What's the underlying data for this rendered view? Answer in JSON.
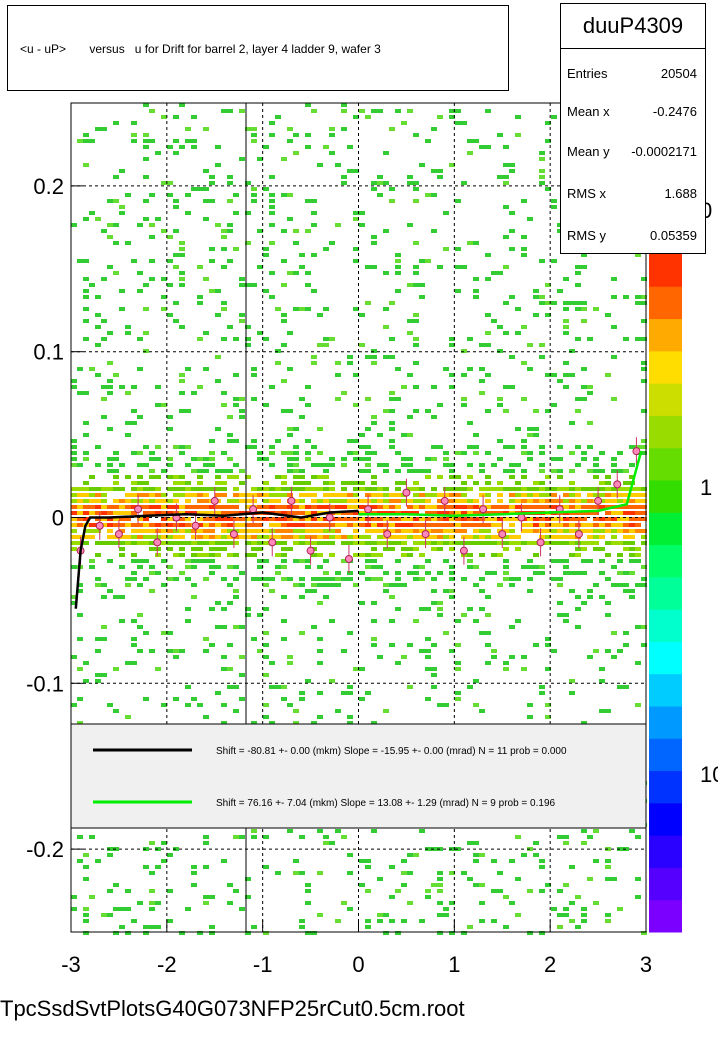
{
  "title": "<u - uP>       versus   u for Drift for barrel 2, layer 4 ladder 9, wafer 3",
  "stats": {
    "name": "duuP4309",
    "rows": [
      {
        "label": "Entries",
        "value": "20504"
      },
      {
        "label": "Mean x",
        "value": "-0.2476"
      },
      {
        "label": "Mean y",
        "value": "-0.0002171"
      },
      {
        "label": "RMS x",
        "value": "1.688"
      },
      {
        "label": "RMS y",
        "value": "0.05359"
      }
    ]
  },
  "footer": "TpcSsdSvtPlotsG40G073NFP25rCut0.5cm.root",
  "colorbar_labels": [
    "0",
    "1",
    "10"
  ],
  "legend": [
    {
      "text": "Shift =    -80.81 +- 0.00 (mkm) Slope =    -15.95 +- 0.00 (mrad)  N = 11 prob = 0.000",
      "color": "#000000"
    },
    {
      "text": "Shift =    76.16 +- 7.04 (mkm) Slope =    13.08 +- 1.29 (mrad)  N = 9 prob = 0.196",
      "color": "#00ee00"
    }
  ],
  "chart_data": {
    "type": "heatmap",
    "xlim": [
      -3,
      3
    ],
    "ylim": [
      -0.25,
      0.25
    ],
    "x_ticks": [
      "-3",
      "-2",
      "-1",
      "0",
      "1",
      "2",
      "3"
    ],
    "y_ticks": [
      "-0.2",
      "-0.1",
      "0",
      "0.1",
      "0.2"
    ],
    "grid": true,
    "profile_points": {
      "x": [
        -2.9,
        -2.7,
        -2.5,
        -2.3,
        -2.1,
        -1.9,
        -1.7,
        -1.5,
        -1.3,
        -1.1,
        -0.9,
        -0.7,
        -0.5,
        -0.3,
        -0.1,
        0.1,
        0.3,
        0.5,
        0.7,
        0.9,
        1.1,
        1.3,
        1.5,
        1.7,
        1.9,
        2.1,
        2.3,
        2.5,
        2.7,
        2.9
      ],
      "y": [
        -0.02,
        -0.005,
        -0.01,
        0.005,
        -0.015,
        0.0,
        -0.005,
        0.01,
        -0.01,
        0.005,
        -0.015,
        0.01,
        -0.02,
        0.0,
        -0.025,
        0.005,
        -0.01,
        0.015,
        -0.01,
        0.01,
        -0.02,
        0.005,
        -0.01,
        0.0,
        -0.015,
        0.005,
        -0.01,
        0.01,
        0.02,
        0.04
      ]
    },
    "fit_black": {
      "x": [
        -2.95,
        -2.9,
        -2.85,
        -2.8,
        -2.6,
        -2.2,
        -1.8,
        -1.4,
        -1.0,
        -0.6,
        -0.3,
        0.0
      ],
      "y": [
        -0.055,
        -0.02,
        -0.005,
        0.0,
        0.0,
        0.001,
        0.002,
        0.001,
        0.003,
        0.0,
        0.003,
        0.004
      ]
    },
    "fit_green": {
      "x": [
        0.0,
        0.5,
        1.0,
        1.5,
        2.0,
        2.5,
        2.8,
        2.95
      ],
      "y": [
        0.002,
        0.002,
        0.001,
        0.002,
        0.003,
        0.004,
        0.008,
        0.04
      ]
    }
  }
}
